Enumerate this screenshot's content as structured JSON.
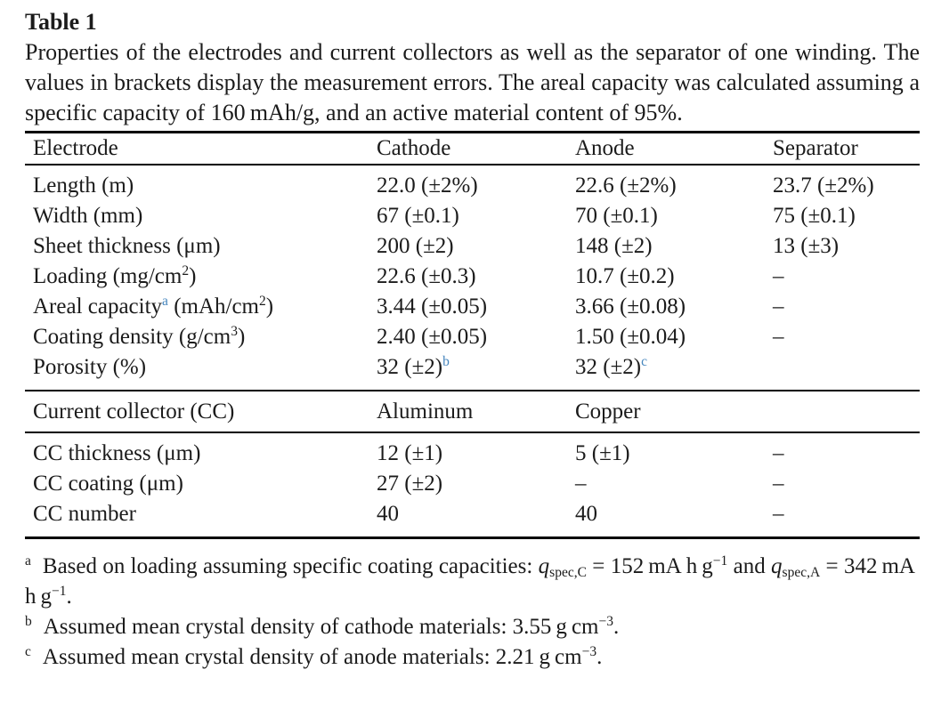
{
  "page": {
    "background": "#ffffff",
    "text_color": "#1b1b1b",
    "footnote_marker_blue": "#4585bd",
    "rule_color": "#000000"
  },
  "table_label": "Table 1",
  "caption": "Properties of the electrodes and current collectors as well as the separator of one winding. The values in brackets display the measurement errors. The areal capacity was calculated assuming a specific capacity of 160 mAh/g, and an active material content of 95%.",
  "table": {
    "header": [
      "Electrode",
      "Cathode",
      "Anode",
      "Separator"
    ],
    "electrode_rows": [
      [
        "Length (m)",
        "22.0 (±2%)",
        "22.6 (±2%)",
        "23.7 (±2%)"
      ],
      [
        "Width (mm)",
        "67 (±0.1)",
        "70 (±0.1)",
        "75 (±0.1)"
      ],
      [
        "Sheet thickness (μm)",
        "200 (±2)",
        "148 (±2)",
        "13 (±3)"
      ],
      [
        "Loading (mg/cm^{2})",
        "22.6 (±0.3)",
        "10.7 (±0.2)",
        "–"
      ],
      [
        "Areal capacity@{a} (mAh/cm^{2})",
        "3.44 (±0.05)",
        "3.66 (±0.08)",
        "–"
      ],
      [
        "Coating density (g/cm^{3})",
        "2.40 (±0.05)",
        "1.50 (±0.04)",
        "–"
      ],
      [
        "Porosity (%)",
        "32 (±2)@{b}",
        "32 (±2)@{c}",
        ""
      ]
    ],
    "cc_header": [
      "Current collector (CC)",
      "Aluminum",
      "Copper",
      ""
    ],
    "cc_rows": [
      [
        "CC thickness (μm)",
        "12 (±1)",
        "5 (±1)",
        "–"
      ],
      [
        "CC coating (μm)",
        "27 (±2)",
        "–",
        "–"
      ],
      [
        "CC number",
        "40",
        "40",
        "–"
      ]
    ]
  },
  "footnotes": [
    {
      "marker": "a",
      "text": "Based on loading assuming specific coating capacities: !{q}_{spec,C} = 152 mA h g^{−1} and !{q}_{spec,A} = 342 mA h g^{−1}."
    },
    {
      "marker": "b",
      "text": "Assumed mean crystal density of cathode materials: 3.55 g cm^{−3}."
    },
    {
      "marker": "c",
      "text": "Assumed mean crystal density of anode materials: 2.21 g cm^{−3}."
    }
  ]
}
